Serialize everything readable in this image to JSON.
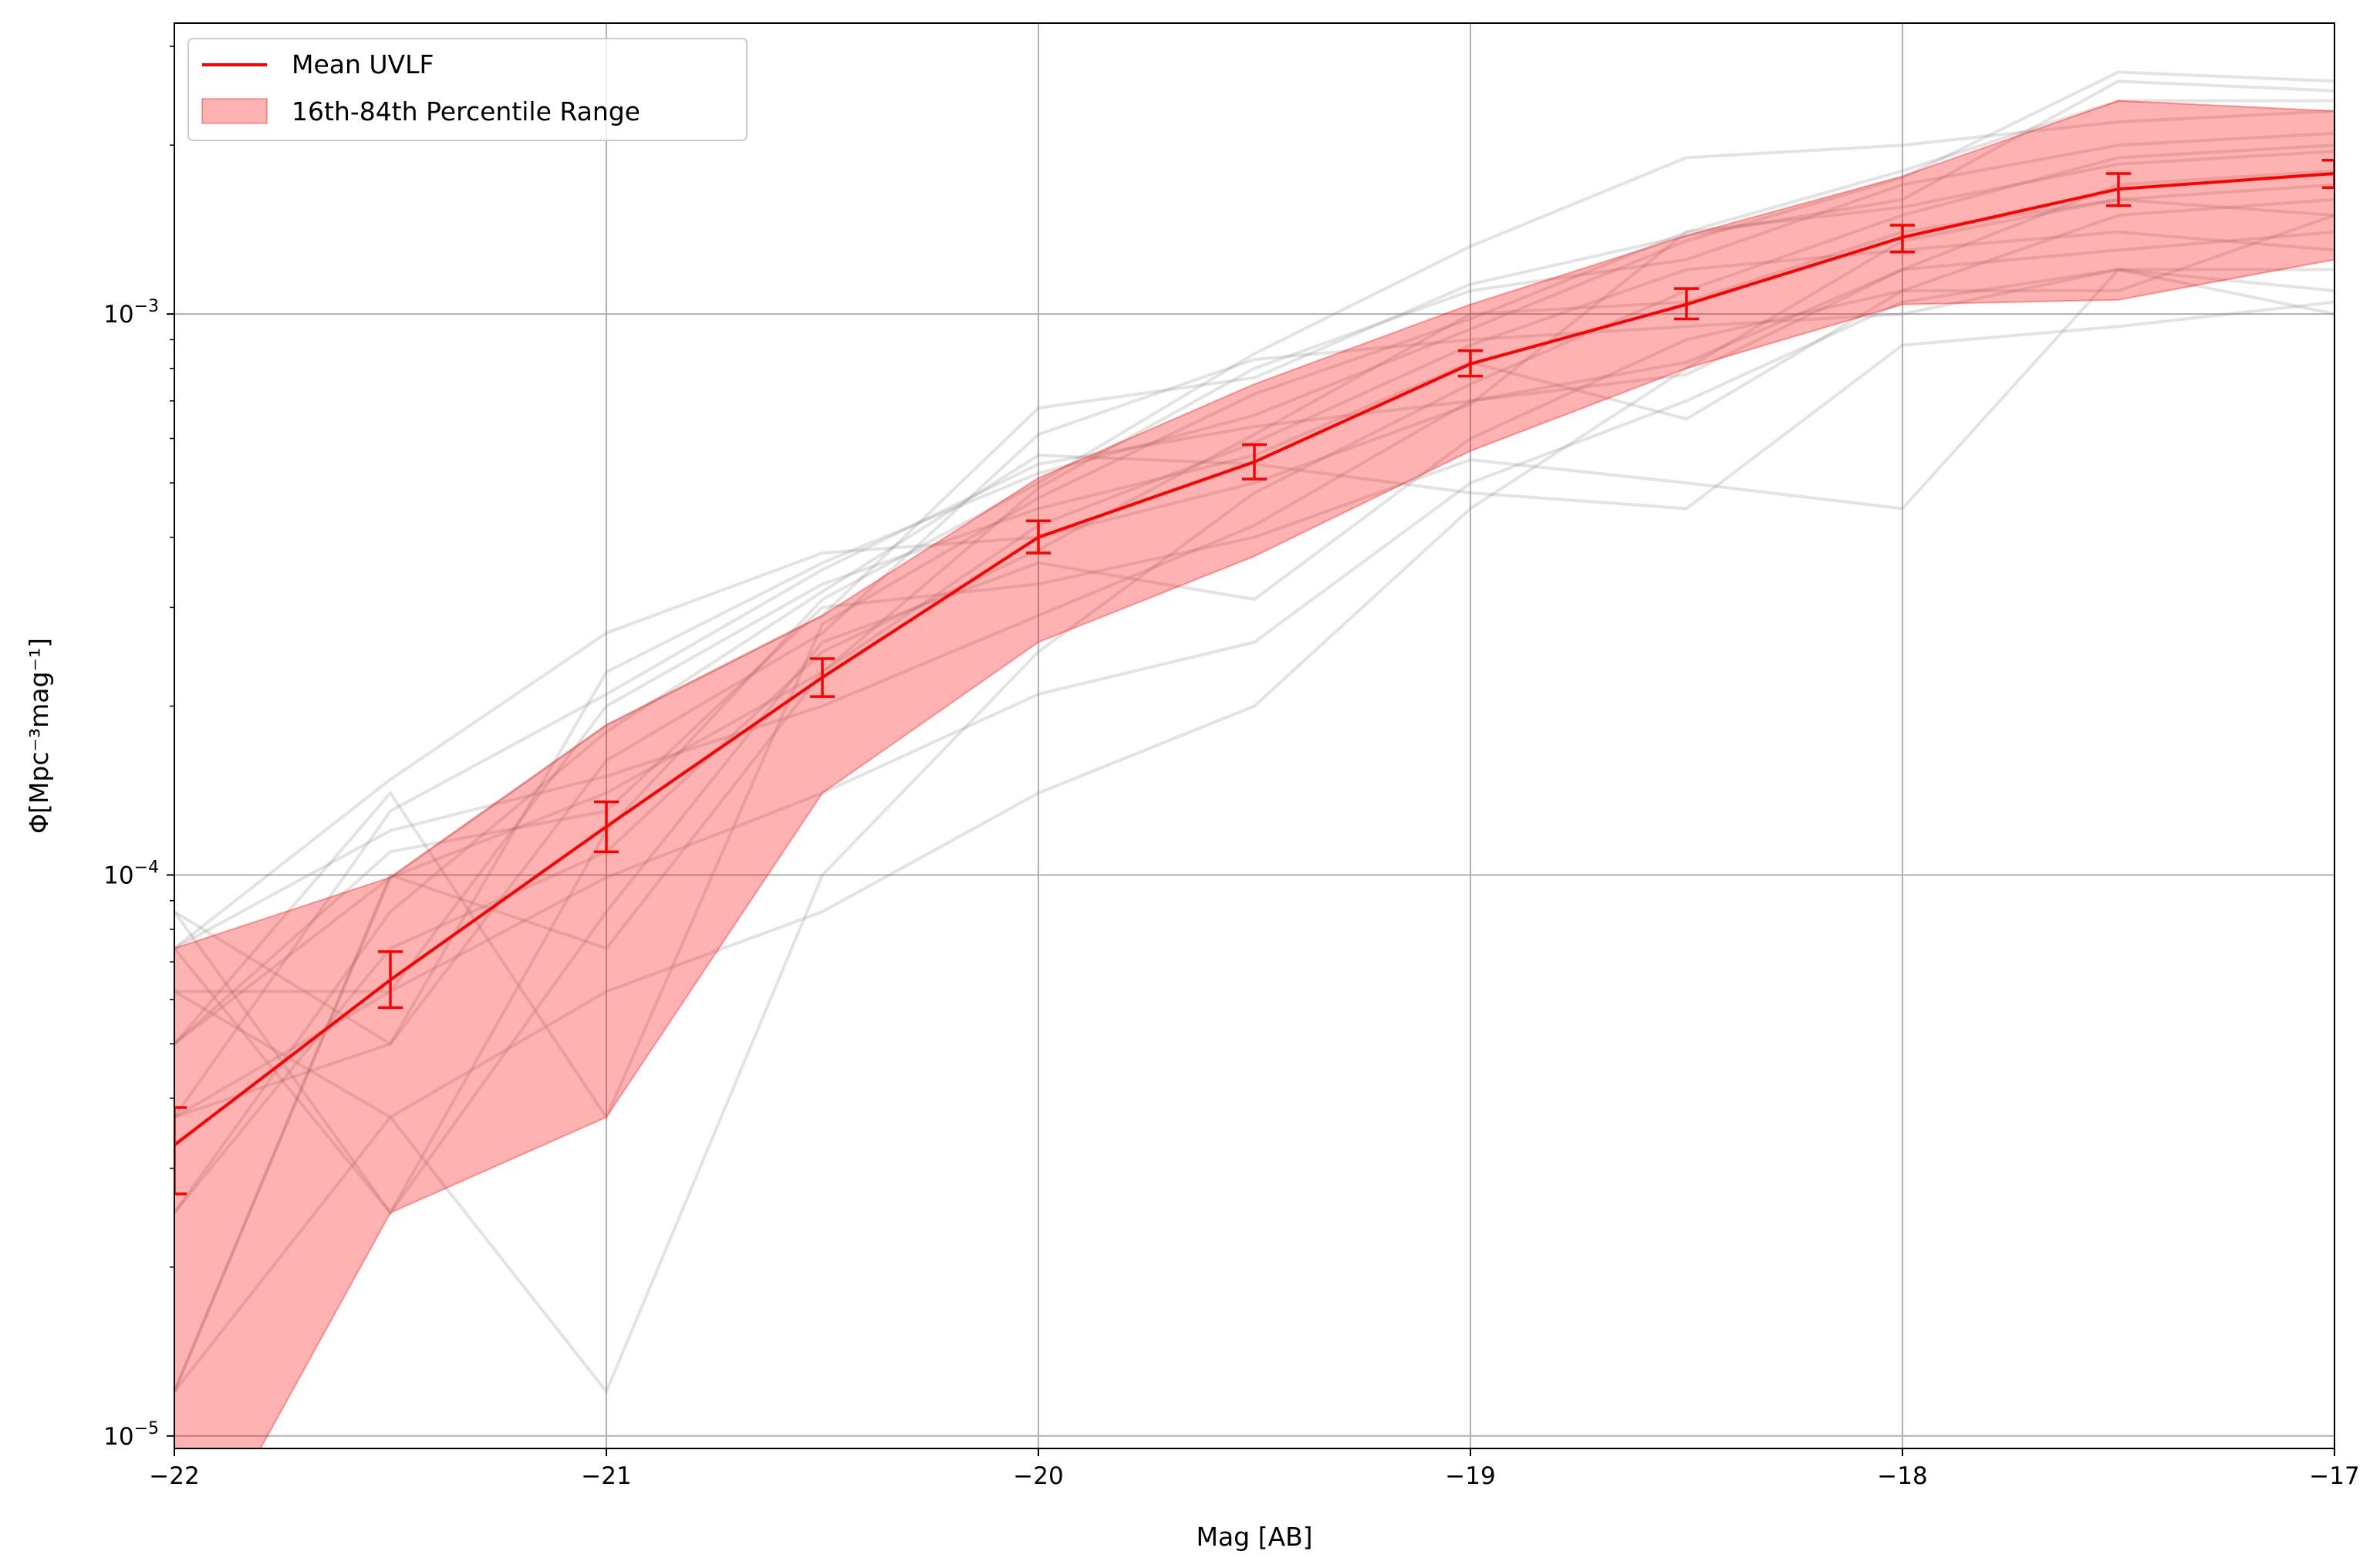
{
  "chart_data": {
    "type": "line",
    "xlabel": "Mag [AB]",
    "ylabel": "Φ[Mpc⁻³mag⁻¹]",
    "xlim": [
      -22,
      -17
    ],
    "ylim": [
      9.5e-06,
      0.0033
    ],
    "yscale": "log",
    "grid": true,
    "legend_position": "top-left",
    "x_ticks": [
      -22,
      -21,
      -20,
      -19,
      -18,
      -17
    ],
    "x_tick_labels": [
      "−22",
      "−21",
      "−20",
      "−19",
      "−18",
      "−17"
    ],
    "y_ticks": [
      1e-05,
      0.0001,
      0.001
    ],
    "y_tick_labels": [
      {
        "base": "10",
        "exp": "−5"
      },
      {
        "base": "10",
        "exp": "−4"
      },
      {
        "base": "10",
        "exp": "−3"
      }
    ],
    "x": [
      -22,
      -21.5,
      -21,
      -20.5,
      -20,
      -19.5,
      -19,
      -18.5,
      -18,
      -17.5,
      -17
    ],
    "mean": {
      "name": "Mean UVLF",
      "color": "#ff0000",
      "values": [
        3.3e-05,
        6.5e-05,
        0.000122,
        0.000225,
        0.0004,
        0.000545,
        0.000815,
        0.00104,
        0.00137,
        0.00167,
        0.00178
      ],
      "err_low": [
        2.7e-05,
        5.8e-05,
        0.00011,
        0.000208,
        0.000375,
        0.000508,
        0.000775,
        0.00098,
        0.00129,
        0.00156,
        0.00168
      ],
      "err_high": [
        3.85e-05,
        7.3e-05,
        0.000135,
        0.000243,
        0.000428,
        0.000585,
        0.00086,
        0.00111,
        0.00144,
        0.00178,
        0.00188
      ]
    },
    "band": {
      "name": "16th-84th Percentile Range",
      "color": "#ff0000",
      "lower": [
        5e-06,
        2.5e-05,
        3.7e-05,
        0.00014,
        0.00026,
        0.00037,
        0.00057,
        0.0008,
        0.00104,
        0.00106,
        0.00125
      ],
      "upper": [
        7.4e-05,
        9.9e-05,
        0.000185,
        0.00029,
        0.00051,
        0.00075,
        0.00104,
        0.00138,
        0.00176,
        0.0024,
        0.0023
      ]
    },
    "realizations": [
      [
        7.4e-05,
        0.000148,
        0.00027,
        0.000375,
        0.0004,
        0.0005,
        0.00069,
        0.0014,
        0.0018,
        0.0024,
        0.0024
      ],
      [
        3.7e-05,
        5e-05,
        0.00023,
        0.00036,
        0.00052,
        0.00066,
        0.00094,
        0.00135,
        0.00175,
        0.0027,
        0.0026
      ],
      [
        1.2e-05,
        9.9e-05,
        0.000185,
        0.00029,
        0.00068,
        0.00077,
        0.00113,
        0.00138,
        0.0016,
        0.0026,
        0.0025
      ],
      [
        8.6e-05,
        2.5e-05,
        0.00012,
        0.00031,
        0.0005,
        0.00085,
        0.00132,
        0.0019,
        0.002,
        0.0022,
        0.0023
      ],
      [
        5e-05,
        0.00014,
        3.7e-05,
        0.00028,
        0.00047,
        0.00072,
        0.00098,
        0.0014,
        0.00155,
        0.00185,
        0.00195
      ],
      [
        2.5e-05,
        7.4e-05,
        0.00011,
        0.00025,
        0.00038,
        0.00061,
        0.001,
        0.00105,
        0.0014,
        0.0016,
        0.0017
      ],
      [
        6.2e-05,
        3.7e-05,
        1.2e-05,
        0.0001,
        0.00025,
        0.00048,
        0.00075,
        0.0011,
        0.0015,
        0.0019,
        0.002
      ],
      [
        7.4e-05,
        0.00012,
        0.00015,
        0.0002,
        0.00029,
        0.00042,
        0.0007,
        0.00082,
        0.0012,
        0.0013,
        0.0014
      ],
      [
        3.7e-05,
        6.2e-05,
        0.0002,
        0.00033,
        0.00045,
        0.00056,
        0.00082,
        0.00065,
        0.0011,
        0.0015,
        0.0016
      ],
      [
        1.2e-05,
        0.0001,
        7.4e-05,
        0.00023,
        0.00042,
        0.00059,
        0.00088,
        0.0012,
        0.0013,
        0.0014,
        0.0013
      ],
      [
        8.6e-05,
        5e-05,
        0.00016,
        0.00027,
        0.00061,
        0.00083,
        0.0009,
        0.00095,
        0.001,
        0.0012,
        0.0011
      ],
      [
        5e-05,
        0.00011,
        0.00013,
        0.0003,
        0.00033,
        0.0004,
        0.00055,
        0.0005,
        0.00045,
        0.0012,
        0.001
      ],
      [
        2.5e-05,
        8.6e-05,
        0.00018,
        0.00032,
        0.00056,
        0.00054,
        0.00048,
        0.00045,
        0.00088,
        0.00095,
        0.00105
      ],
      [
        6.2e-05,
        6.2e-05,
        9.9e-05,
        0.00014,
        0.00021,
        0.00026,
        0.0005,
        0.0007,
        0.00105,
        0.0012,
        0.0012
      ],
      [
        3.7e-05,
        0.00013,
        0.00021,
        0.00035,
        0.00054,
        0.00063,
        0.0007,
        0.00078,
        0.0012,
        0.0017,
        0.0018
      ],
      [
        7.4e-05,
        2.5e-05,
        8.6e-05,
        0.00026,
        0.00036,
        0.00031,
        0.0006,
        0.0009,
        0.0011,
        0.0011,
        0.0015
      ],
      [
        5e-05,
        9.9e-05,
        0.00014,
        0.00023,
        0.00049,
        0.0008,
        0.0011,
        0.00125,
        0.0017,
        0.002,
        0.0021
      ],
      [
        1.2e-05,
        3.7e-05,
        6.2e-05,
        8.6e-05,
        0.00014,
        0.0002,
        0.00045,
        0.0008,
        0.00135,
        0.0016,
        0.0015
      ]
    ]
  }
}
